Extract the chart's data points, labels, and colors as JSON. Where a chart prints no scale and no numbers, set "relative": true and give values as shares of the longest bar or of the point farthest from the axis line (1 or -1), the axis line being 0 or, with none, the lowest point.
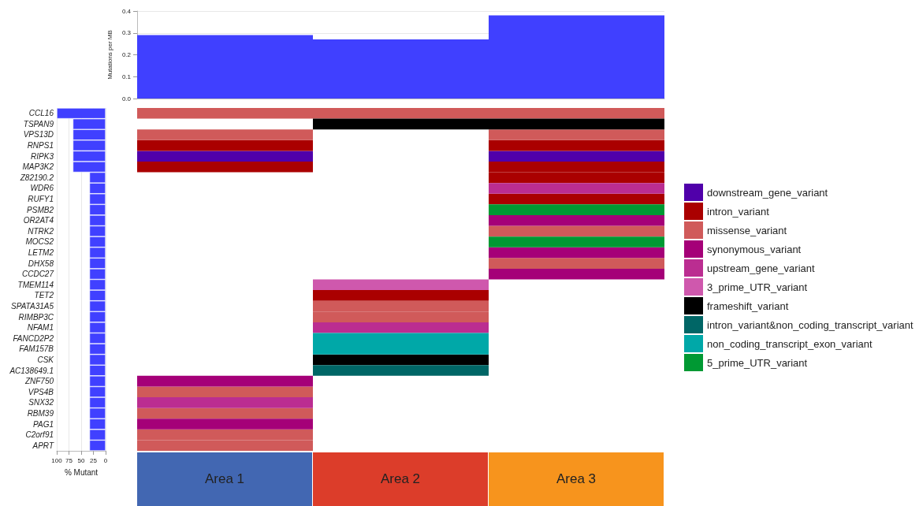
{
  "chart_data": [
    {
      "type": "bar",
      "ylabel": "Mutations per MB",
      "categories": [
        null,
        null,
        null
      ],
      "values": [
        0.29,
        0.27,
        0.38
      ],
      "color": "#4040ff",
      "ylim": [
        0,
        0.4
      ],
      "yticks": [
        {
          "value": 0,
          "label": "0.0"
        },
        0.1,
        0.2,
        0.3,
        0.4
      ],
      "grid": true
    },
    {
      "type": "bar",
      "orientation": "horizontal",
      "xlabel": "% Mutant",
      "tick_labels": "x",
      "categories": [
        null,
        null,
        null,
        null,
        null,
        null,
        null,
        null,
        null,
        null,
        null,
        null,
        null,
        null,
        null,
        null,
        null,
        null,
        null,
        null,
        null,
        null,
        null,
        null,
        null,
        null,
        null,
        null,
        null,
        null,
        null,
        null
      ],
      "values": [
        100,
        67,
        67,
        67,
        67,
        67,
        33,
        33,
        33,
        33,
        33,
        33,
        33,
        33,
        33,
        33,
        33,
        33,
        33,
        33,
        33,
        33,
        33,
        33,
        33,
        33,
        33,
        33,
        33,
        33,
        33,
        33
      ],
      "color": "#4040ff",
      "xlim": [
        100,
        0
      ],
      "xticks": [
        100,
        75,
        50,
        25,
        0
      ],
      "grid": true
    },
    {
      "type": "bar",
      "orientation": "horizontal",
      "stacked": true,
      "relative": true,
      "xlabel": "Area 1",
      "categories": [
        "CCL16",
        "TSPAN9",
        "VPS13D",
        "RNPS1",
        "RIPK3",
        "MAP3K2",
        "Z82190.2",
        "WDR6",
        "RUFY1",
        "PSMB2",
        "OR2AT4",
        "NTRK2",
        "MOCS2",
        "LETM2",
        "DHX58",
        "CCDC27",
        "TMEM114",
        "TET2",
        "SPATA31A5",
        "RIMBP3C",
        "NFAM1",
        "FANCD2P2",
        "FAM157B",
        "CSK",
        "AC138649.1",
        "ZNF750",
        "VPS4B",
        "SNX32",
        "RBM39",
        "PAG1",
        "C2orf91",
        "APRT"
      ],
      "series": [
        {
          "color": "#5000aa",
          "values": [
            null,
            null,
            null,
            null,
            1,
            null,
            null,
            null,
            null,
            null,
            null,
            null,
            null,
            null,
            null,
            null,
            null,
            null,
            null,
            null,
            null,
            null,
            null,
            null,
            null,
            null,
            null,
            null,
            null,
            null,
            null,
            null
          ]
        },
        {
          "color": "#aa0000",
          "values": [
            null,
            null,
            null,
            1,
            null,
            1,
            null,
            null,
            null,
            null,
            null,
            null,
            null,
            null,
            null,
            null,
            null,
            null,
            null,
            null,
            null,
            null,
            null,
            null,
            null,
            null,
            null,
            null,
            null,
            null,
            null,
            null
          ]
        },
        {
          "color": "#d05a5a",
          "values": [
            1,
            null,
            1,
            null,
            null,
            null,
            null,
            null,
            null,
            null,
            null,
            null,
            null,
            null,
            null,
            null,
            null,
            null,
            null,
            null,
            null,
            null,
            null,
            null,
            null,
            null,
            1,
            null,
            1,
            null,
            1,
            1
          ]
        },
        {
          "color": "#a50078",
          "values": [
            null,
            null,
            null,
            null,
            null,
            null,
            null,
            null,
            null,
            null,
            null,
            null,
            null,
            null,
            null,
            null,
            null,
            null,
            null,
            null,
            null,
            null,
            null,
            null,
            null,
            1,
            null,
            null,
            null,
            1,
            null,
            null
          ]
        },
        {
          "color": "#bb2d91",
          "values": [
            null,
            null,
            null,
            null,
            null,
            null,
            null,
            null,
            null,
            null,
            null,
            null,
            null,
            null,
            null,
            null,
            null,
            null,
            null,
            null,
            null,
            null,
            null,
            null,
            null,
            null,
            null,
            1,
            null,
            null,
            null,
            null
          ]
        }
      ]
    },
    {
      "type": "bar",
      "orientation": "horizontal",
      "stacked": true,
      "relative": true,
      "xlabel": "Area 2",
      "tick_labels": false,
      "categories": [
        null,
        null,
        null,
        null,
        null,
        null,
        null,
        null,
        null,
        null,
        null,
        null,
        null,
        null,
        null,
        null,
        null,
        null,
        null,
        null,
        null,
        null,
        null,
        null,
        null,
        null,
        null,
        null,
        null,
        null,
        null,
        null
      ],
      "series": [
        {
          "color": "#aa0000",
          "values": [
            null,
            null,
            null,
            null,
            null,
            null,
            null,
            null,
            null,
            null,
            null,
            null,
            null,
            null,
            null,
            null,
            null,
            1,
            null,
            null,
            null,
            null,
            null,
            null,
            null,
            null,
            null,
            null,
            null,
            null,
            null,
            null
          ]
        },
        {
          "color": "#d05a5a",
          "values": [
            1,
            null,
            null,
            null,
            null,
            null,
            null,
            null,
            null,
            null,
            null,
            null,
            null,
            null,
            null,
            null,
            null,
            null,
            1,
            1,
            null,
            null,
            null,
            null,
            null,
            null,
            null,
            null,
            null,
            null,
            null,
            null
          ]
        },
        {
          "color": "#bb2d91",
          "values": [
            null,
            null,
            null,
            null,
            null,
            null,
            null,
            null,
            null,
            null,
            null,
            null,
            null,
            null,
            null,
            null,
            null,
            null,
            null,
            null,
            1,
            null,
            null,
            null,
            null,
            null,
            null,
            null,
            null,
            null,
            null,
            null
          ]
        },
        {
          "color": "#cf58ad",
          "values": [
            null,
            null,
            null,
            null,
            null,
            null,
            null,
            null,
            null,
            null,
            null,
            null,
            null,
            null,
            null,
            null,
            1,
            null,
            null,
            null,
            null,
            null,
            null,
            null,
            null,
            null,
            null,
            null,
            null,
            null,
            null,
            null
          ]
        },
        {
          "color": "#000000",
          "values": [
            null,
            1,
            null,
            null,
            null,
            null,
            null,
            null,
            null,
            null,
            null,
            null,
            null,
            null,
            null,
            null,
            null,
            null,
            null,
            null,
            null,
            null,
            null,
            1,
            null,
            null,
            null,
            null,
            null,
            null,
            null,
            null
          ]
        },
        {
          "color": "#006666",
          "values": [
            null,
            null,
            null,
            null,
            null,
            null,
            null,
            null,
            null,
            null,
            null,
            null,
            null,
            null,
            null,
            null,
            null,
            null,
            null,
            null,
            null,
            null,
            null,
            null,
            1,
            null,
            null,
            null,
            null,
            null,
            null,
            null
          ]
        },
        {
          "color": "#00a8a8",
          "values": [
            null,
            null,
            null,
            null,
            null,
            null,
            null,
            null,
            null,
            null,
            null,
            null,
            null,
            null,
            null,
            null,
            null,
            null,
            null,
            null,
            null,
            1,
            1,
            null,
            null,
            null,
            null,
            null,
            null,
            null,
            null,
            null
          ]
        }
      ]
    },
    {
      "type": "bar",
      "orientation": "horizontal",
      "stacked": true,
      "relative": true,
      "xlabel": "Area 3",
      "tick_labels": false,
      "legend": "right",
      "categories": [
        null,
        null,
        null,
        null,
        null,
        null,
        null,
        null,
        null,
        null,
        null,
        null,
        null,
        null,
        null,
        null,
        null,
        null,
        null,
        null,
        null,
        null,
        null,
        null,
        null,
        null,
        null,
        null,
        null,
        null,
        null,
        null
      ],
      "series": [
        {
          "name": "downstream_gene_variant",
          "color": "#5000aa",
          "values": [
            null,
            null,
            null,
            null,
            1,
            null,
            null,
            null,
            null,
            null,
            null,
            null,
            null,
            null,
            null,
            null,
            null,
            null,
            null,
            null,
            null,
            null,
            null,
            null,
            null,
            null,
            null,
            null,
            null,
            null,
            null,
            null
          ]
        },
        {
          "name": "intron_variant",
          "color": "#aa0000",
          "values": [
            null,
            null,
            null,
            1,
            null,
            1,
            1,
            null,
            1,
            null,
            null,
            null,
            null,
            null,
            null,
            null,
            null,
            null,
            null,
            null,
            null,
            null,
            null,
            null,
            null,
            null,
            null,
            null,
            null,
            null,
            null,
            null
          ]
        },
        {
          "name": "missense_variant",
          "color": "#d05a5a",
          "values": [
            1,
            null,
            1,
            null,
            null,
            null,
            null,
            null,
            null,
            null,
            null,
            1,
            null,
            null,
            1,
            null,
            null,
            null,
            null,
            null,
            null,
            null,
            null,
            null,
            null,
            null,
            null,
            null,
            null,
            null,
            null,
            null
          ]
        },
        {
          "name": "synonymous_variant",
          "color": "#a50078",
          "values": [
            null,
            null,
            null,
            null,
            null,
            null,
            null,
            null,
            null,
            null,
            1,
            null,
            null,
            1,
            null,
            1,
            null,
            null,
            null,
            null,
            null,
            null,
            null,
            null,
            null,
            null,
            null,
            null,
            null,
            null,
            null,
            null
          ]
        },
        {
          "name": "upstream_gene_variant",
          "color": "#bb2d91",
          "values": [
            null,
            null,
            null,
            null,
            null,
            null,
            null,
            1,
            null,
            null,
            null,
            null,
            null,
            null,
            null,
            null,
            null,
            null,
            null,
            null,
            null,
            null,
            null,
            null,
            null,
            null,
            null,
            null,
            null,
            null,
            null,
            null
          ]
        },
        {
          "name": "3_prime_UTR_variant",
          "color": "#cf58ad",
          "values": [
            null,
            null,
            null,
            null,
            null,
            null,
            null,
            null,
            null,
            null,
            null,
            null,
            null,
            null,
            null,
            null,
            null,
            null,
            null,
            null,
            null,
            null,
            null,
            null,
            null,
            null,
            null,
            null,
            null,
            null,
            null,
            null
          ]
        },
        {
          "name": "frameshift_variant",
          "color": "#000000",
          "values": [
            null,
            1,
            null,
            null,
            null,
            null,
            null,
            null,
            null,
            null,
            null,
            null,
            null,
            null,
            null,
            null,
            null,
            null,
            null,
            null,
            null,
            null,
            null,
            null,
            null,
            null,
            null,
            null,
            null,
            null,
            null,
            null
          ]
        },
        {
          "name": "intron_variant&non_coding_transcript_variant",
          "color": "#006666",
          "values": [
            null,
            null,
            null,
            null,
            null,
            null,
            null,
            null,
            null,
            null,
            null,
            null,
            null,
            null,
            null,
            null,
            null,
            null,
            null,
            null,
            null,
            null,
            null,
            null,
            null,
            null,
            null,
            null,
            null,
            null,
            null,
            null
          ]
        },
        {
          "name": "non_coding_transcript_exon_variant",
          "color": "#00a8a8",
          "values": [
            null,
            null,
            null,
            null,
            null,
            null,
            null,
            null,
            null,
            null,
            null,
            null,
            null,
            null,
            null,
            null,
            null,
            null,
            null,
            null,
            null,
            null,
            null,
            null,
            null,
            null,
            null,
            null,
            null,
            null,
            null,
            null
          ]
        },
        {
          "name": "5_prime_UTR_variant",
          "color": "#009933",
          "values": [
            null,
            null,
            null,
            null,
            null,
            null,
            null,
            null,
            null,
            1,
            null,
            null,
            1,
            null,
            null,
            null,
            null,
            null,
            null,
            null,
            null,
            null,
            null,
            null,
            null,
            null,
            null,
            null,
            null,
            null,
            null,
            null
          ]
        }
      ]
    }
  ]
}
